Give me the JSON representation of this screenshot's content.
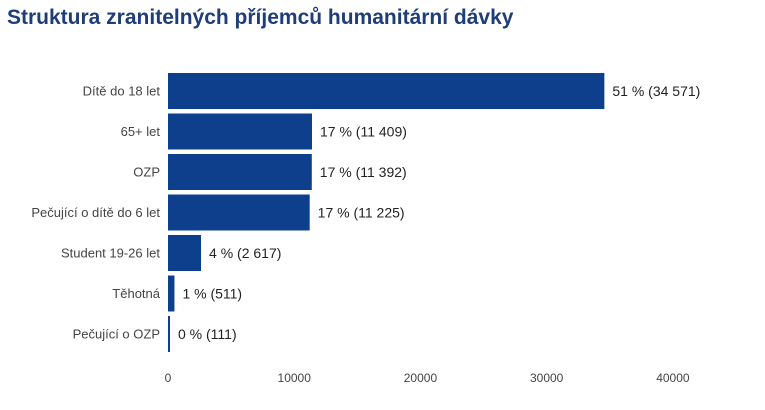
{
  "colors": {
    "bar": "#0e3f8c",
    "title": "#1f3d7a"
  },
  "chart_data": {
    "type": "bar",
    "orientation": "horizontal",
    "title": "Struktura zranitelných příjemců humanitární dávky",
    "xlabel": "",
    "ylabel": "",
    "xlim": [
      0,
      45000
    ],
    "x_ticks": [
      0,
      10000,
      20000,
      30000,
      40000
    ],
    "x_tick_labels": [
      "0",
      "10000",
      "20000",
      "30000",
      "40000"
    ],
    "grid": false,
    "legend": "none",
    "categories": [
      "Dítě do 18 let",
      "65+ let",
      "OZP",
      "Pečující o dítě do 6 let",
      "Student 19-26 let",
      "Těhotná",
      "Pečující o OZP"
    ],
    "values": [
      34571,
      11409,
      11392,
      11225,
      2617,
      511,
      111
    ],
    "data_labels": [
      "51 % (34 571)",
      "17 % (11 409)",
      "17 % (11 392)",
      "17 % (11 225)",
      "4 % (2 617)",
      "1 % (511)",
      "0 % (111)"
    ]
  }
}
